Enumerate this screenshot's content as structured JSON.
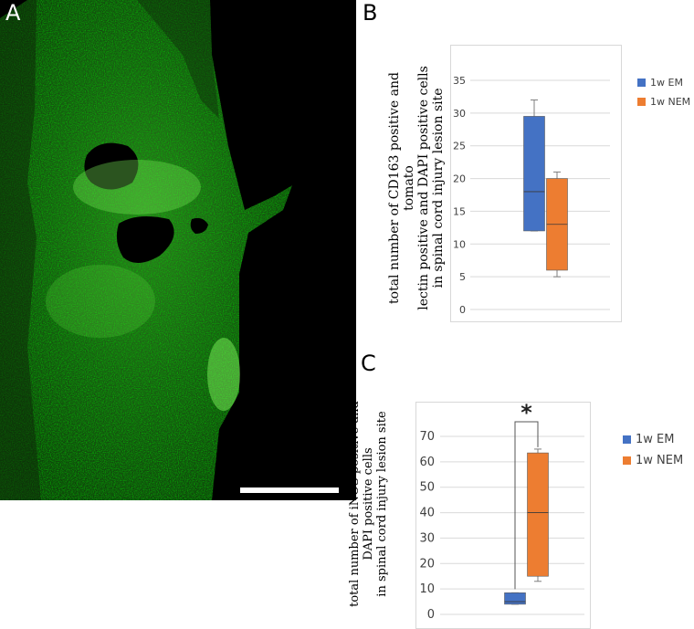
{
  "panels": {
    "a": {
      "letter": "A"
    },
    "b": {
      "letter": "B"
    },
    "c": {
      "letter": "C"
    }
  },
  "colors": {
    "em": "#4472c4",
    "nem": "#ed7d31",
    "tissue": "#3fbf2a",
    "scale_bar": "#ffffff"
  },
  "chart_data": [
    {
      "type": "box",
      "ylabel_lines": [
        "total number of CD163 positive and tomato",
        "lectin positive and DAPI positive cells",
        "in spinal cord injury lesion site"
      ],
      "ylim": [
        0,
        35
      ],
      "yticks": [
        0,
        5,
        10,
        15,
        20,
        25,
        30,
        35
      ],
      "grid": true,
      "legend_position": "right",
      "series": [
        {
          "name": "1w EM",
          "color": "#4472c4",
          "min": 12,
          "q1": 12,
          "median": 18,
          "q3": 29.5,
          "max": 32
        },
        {
          "name": "1w NEM",
          "color": "#ed7d31",
          "min": 5,
          "q1": 6,
          "median": 13,
          "q3": 20,
          "max": 21
        }
      ]
    },
    {
      "type": "box",
      "ylabel_lines": [
        "total number of iNOS positive and",
        "DAPI positive cells",
        "in spinal cord injury lesion site"
      ],
      "ylim": [
        0,
        70
      ],
      "yticks": [
        0,
        10,
        20,
        30,
        40,
        50,
        60,
        70
      ],
      "grid": true,
      "legend_position": "right",
      "significance": "*",
      "series": [
        {
          "name": "1w EM",
          "color": "#4472c4",
          "min": 4,
          "q1": 4,
          "median": 5,
          "q3": 8.5,
          "max": 8.5
        },
        {
          "name": "1w NEM",
          "color": "#ed7d31",
          "min": 13,
          "q1": 15,
          "median": 40,
          "q3": 63.5,
          "max": 65
        }
      ]
    }
  ]
}
